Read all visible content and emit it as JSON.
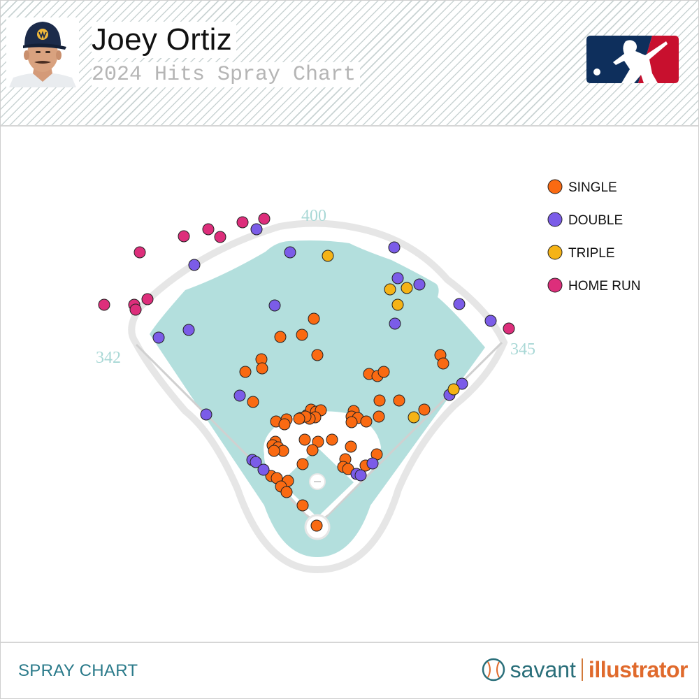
{
  "header": {
    "title": "Joey Ortiz",
    "subtitle": "2024 Hits Spray Chart"
  },
  "footer": {
    "left_label": "SPRAY CHART",
    "brand_left": "savant",
    "brand_right": "illustrator"
  },
  "colors": {
    "single": "#fa6a12",
    "double": "#7b5ce8",
    "triple": "#f5b316",
    "home_run": "#dd2e7b",
    "grass": "#b3dfdd",
    "wall": "#e2e2e2"
  },
  "chart_data": {
    "type": "scatter",
    "title": "2024 Hits Spray Chart",
    "fences": {
      "left": "342",
      "center": "400",
      "right": "345"
    },
    "legend": [
      {
        "key": "single",
        "label": "SINGLE"
      },
      {
        "key": "double",
        "label": "DOUBLE"
      },
      {
        "key": "triple",
        "label": "TRIPLE"
      },
      {
        "key": "home_run",
        "label": "HOME RUN"
      }
    ],
    "legend_position": "top-right",
    "series": [
      {
        "name": "SINGLE",
        "key": "single",
        "points": [
          [
            449,
            456
          ],
          [
            432,
            479
          ],
          [
            401,
            482
          ],
          [
            454,
            508
          ],
          [
            374,
            514
          ],
          [
            375,
            527
          ],
          [
            351,
            532
          ],
          [
            528,
            535
          ],
          [
            540,
            538
          ],
          [
            549,
            532
          ],
          [
            630,
            508
          ],
          [
            634,
            520
          ],
          [
            362,
            575
          ],
          [
            543,
            573
          ],
          [
            571,
            573
          ],
          [
            607,
            586
          ],
          [
            395,
            603
          ],
          [
            410,
            600
          ],
          [
            407,
            607
          ],
          [
            430,
            598
          ],
          [
            439,
            594
          ],
          [
            445,
            586
          ],
          [
            452,
            589
          ],
          [
            459,
            587
          ],
          [
            451,
            597
          ],
          [
            443,
            599
          ],
          [
            437,
            596
          ],
          [
            428,
            599
          ],
          [
            506,
            588
          ],
          [
            503,
            596
          ],
          [
            512,
            598
          ],
          [
            524,
            603
          ],
          [
            503,
            604
          ],
          [
            542,
            596
          ],
          [
            394,
            632
          ],
          [
            390,
            637
          ],
          [
            398,
            640
          ],
          [
            405,
            645
          ],
          [
            392,
            645
          ],
          [
            436,
            629
          ],
          [
            455,
            632
          ],
          [
            475,
            629
          ],
          [
            502,
            639
          ],
          [
            447,
            644
          ],
          [
            433,
            664
          ],
          [
            494,
            657
          ],
          [
            539,
            650
          ],
          [
            491,
            668
          ],
          [
            498,
            671
          ],
          [
            523,
            666
          ],
          [
            388,
            681
          ],
          [
            396,
            684
          ],
          [
            412,
            688
          ],
          [
            402,
            696
          ],
          [
            410,
            704
          ],
          [
            433,
            723
          ],
          [
            453,
            752
          ]
        ]
      },
      {
        "name": "DOUBLE",
        "key": "double",
        "points": [
          [
            367,
            328
          ],
          [
            415,
            361
          ],
          [
            564,
            354
          ],
          [
            278,
            379
          ],
          [
            569,
            398
          ],
          [
            600,
            407
          ],
          [
            393,
            437
          ],
          [
            657,
            435
          ],
          [
            565,
            463
          ],
          [
            702,
            459
          ],
          [
            270,
            472
          ],
          [
            227,
            483
          ],
          [
            343,
            566
          ],
          [
            295,
            593
          ],
          [
            643,
            565
          ],
          [
            661,
            549
          ],
          [
            361,
            658
          ],
          [
            366,
            661
          ],
          [
            377,
            672
          ],
          [
            533,
            663
          ],
          [
            510,
            678
          ],
          [
            516,
            680
          ]
        ]
      },
      {
        "name": "TRIPLE",
        "key": "triple",
        "points": [
          [
            469,
            366
          ],
          [
            558,
            414
          ],
          [
            582,
            412
          ],
          [
            569,
            436
          ],
          [
            649,
            557
          ],
          [
            592,
            597
          ]
        ]
      },
      {
        "name": "HOME RUN",
        "key": "home_run",
        "points": [
          [
            378,
            313
          ],
          [
            347,
            318
          ],
          [
            298,
            328
          ],
          [
            315,
            339
          ],
          [
            263,
            338
          ],
          [
            200,
            361
          ],
          [
            211,
            428
          ],
          [
            192,
            436
          ],
          [
            194,
            443
          ],
          [
            149,
            436
          ],
          [
            728,
            470
          ]
        ]
      }
    ]
  }
}
